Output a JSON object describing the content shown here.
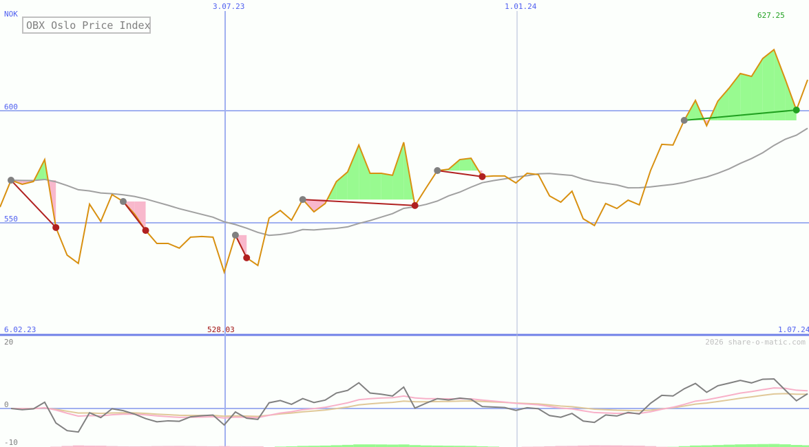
{
  "chart_data": {
    "type": "line",
    "title": "OBX Oslo Price Index",
    "currency_label": "NOK",
    "y_ticks": [
      550,
      600
    ],
    "ylim": [
      517,
      649
    ],
    "x_ticks": [
      "6.02.23",
      "3.07.23",
      "1.01.24",
      "1.07.24"
    ],
    "max_label": "627.25",
    "min_label": "528.03",
    "grid": true,
    "lead_in_value": 557.0,
    "prices": [
      569.0,
      567.2,
      568.4,
      578.2,
      547.9,
      535.6,
      531.9,
      558.3,
      550.6,
      562.6,
      559.5,
      554.0,
      546.6,
      540.8,
      540.8,
      538.7,
      543.6,
      543.9,
      543.6,
      528.03,
      544.5,
      534.4,
      531.0,
      552.1,
      555.5,
      551.2,
      560.4,
      554.9,
      558.6,
      568.4,
      572.7,
      584.7,
      572.1,
      572.1,
      571.2,
      585.9,
      557.7,
      565.6,
      573.3,
      573.9,
      578.2,
      578.8,
      570.6,
      570.9,
      570.9,
      567.8,
      572.1,
      571.5,
      562.0,
      559.2,
      564.1,
      551.8,
      548.8,
      558.6,
      556.4,
      560.1,
      558.0,
      573.3,
      585.0,
      584.7,
      595.7,
      604.6,
      593.3,
      604.3,
      610.1,
      616.6,
      615.3,
      623.3,
      627.25,
      614.1,
      600.3,
      613.8
    ],
    "trades": [
      {
        "entry": 0,
        "exit": 4,
        "result": "loss"
      },
      {
        "entry": 10,
        "exit": 12,
        "result": "loss"
      },
      {
        "entry": 20,
        "exit": 21,
        "result": "loss"
      },
      {
        "entry": 26,
        "exit": 36,
        "result": "loss"
      },
      {
        "entry": 38,
        "exit": 42,
        "result": "loss"
      },
      {
        "entry": 60,
        "exit": 70,
        "result": "gain"
      }
    ],
    "oscillator": {
      "y_ticks": [
        20,
        0,
        -10
      ],
      "ylim": [
        -11,
        21
      ]
    },
    "colors": {
      "price": "#d89010",
      "average": "#a0a0a0",
      "gain": "#98fa90",
      "loss": "#f8b8cc",
      "entry_marker": "#808080",
      "loss_marker": "#b02020",
      "gain_marker": "#20a020",
      "grid": "#a0b0f0",
      "axis_text": "#5060f0",
      "oscillator": "#808080",
      "signal_fast": "#f8b0c8",
      "signal_slow": "#e0c898"
    }
  },
  "footer": {
    "credit": "2026 share-o-matic.com"
  }
}
